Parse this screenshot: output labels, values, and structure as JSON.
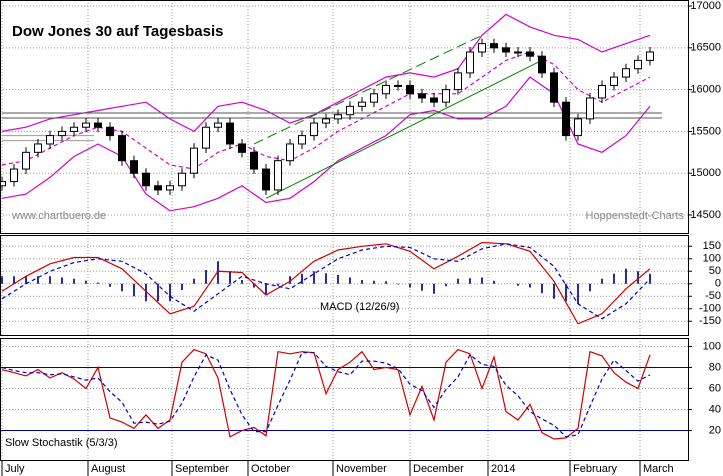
{
  "chart_data": [
    {
      "type": "candlestick",
      "title": "Dow Jones 30 auf Tagesbasis",
      "x": [
        0,
        3,
        6,
        9,
        12,
        15,
        18,
        21,
        24,
        27,
        30,
        33,
        36,
        39,
        42,
        45,
        48,
        51,
        54,
        57,
        60,
        63,
        66,
        69,
        72,
        75,
        78,
        81,
        84,
        87,
        90,
        93,
        96,
        99,
        102,
        105,
        108,
        111,
        114,
        117,
        120,
        123,
        126,
        129,
        132,
        135,
        138,
        141,
        144,
        147,
        150,
        153,
        156,
        159,
        162
      ],
      "open": [
        14850,
        14900,
        15050,
        15250,
        15350,
        15450,
        15500,
        15550,
        15600,
        15550,
        15450,
        15150,
        15000,
        14850,
        14800,
        14850,
        15000,
        15300,
        15550,
        15600,
        15350,
        15250,
        15050,
        14800,
        15150,
        15350,
        15450,
        15600,
        15650,
        15700,
        15800,
        15850,
        15950,
        16050,
        16050,
        15950,
        15900,
        15850,
        16000,
        16200,
        16450,
        16550,
        16500,
        16450,
        16450,
        16400,
        16200,
        15850,
        15450,
        15650,
        15900,
        16050,
        16150,
        16250,
        16350
      ],
      "high": [
        14960,
        15110,
        15310,
        15410,
        15510,
        15560,
        15610,
        15660,
        15660,
        15610,
        15510,
        15210,
        15060,
        14910,
        14910,
        15060,
        15360,
        15610,
        15660,
        15660,
        15410,
        15310,
        15110,
        15210,
        15410,
        15510,
        15660,
        15710,
        15760,
        15860,
        15910,
        16010,
        16110,
        16110,
        16110,
        16010,
        15960,
        16060,
        16260,
        16510,
        16610,
        16610,
        16560,
        16510,
        16510,
        16460,
        16260,
        15910,
        15710,
        15960,
        16110,
        16210,
        16310,
        16410,
        16510
      ],
      "low": [
        14790,
        14840,
        14990,
        15190,
        15290,
        15390,
        15440,
        15490,
        15490,
        15390,
        15090,
        14940,
        14790,
        14740,
        14740,
        14790,
        14940,
        15240,
        15490,
        15290,
        15190,
        14990,
        14740,
        14740,
        15090,
        15290,
        15390,
        15540,
        15590,
        15640,
        15740,
        15790,
        15890,
        15990,
        15890,
        15840,
        15790,
        15790,
        15940,
        16140,
        16390,
        16440,
        16390,
        16390,
        16340,
        16140,
        15790,
        15390,
        15390,
        15590,
        15840,
        15990,
        16090,
        16190,
        16290
      ],
      "close": [
        14900,
        15050,
        15250,
        15350,
        15450,
        15500,
        15550,
        15600,
        15550,
        15450,
        15150,
        15000,
        14850,
        14800,
        14850,
        15000,
        15300,
        15550,
        15600,
        15350,
        15250,
        15050,
        14800,
        15150,
        15350,
        15450,
        15600,
        15650,
        15700,
        15800,
        15850,
        15950,
        16050,
        16050,
        15950,
        15900,
        15850,
        16000,
        16200,
        16450,
        16550,
        16500,
        16450,
        16450,
        16400,
        16200,
        15850,
        15450,
        15650,
        15900,
        16050,
        16150,
        16250,
        16350,
        16450
      ],
      "up_color": "#ffffff",
      "down_color": "#000000",
      "bands": {
        "color": "#d400d4",
        "x": [
          0,
          6,
          12,
          18,
          24,
          30,
          36,
          42,
          48,
          54,
          60,
          66,
          72,
          78,
          84,
          90,
          96,
          102,
          108,
          114,
          120,
          126,
          132,
          138,
          144,
          150,
          156,
          162
        ],
        "upper": [
          15500,
          15550,
          15650,
          15700,
          15750,
          15800,
          15850,
          15650,
          15500,
          15800,
          15850,
          15750,
          15600,
          15700,
          15850,
          16000,
          16150,
          16200,
          16150,
          16250,
          16650,
          16900,
          16750,
          16650,
          16600,
          16450,
          16550,
          16650
        ],
        "middle": [
          15100,
          15150,
          15300,
          15450,
          15550,
          15500,
          15300,
          15100,
          15050,
          15250,
          15350,
          15200,
          15150,
          15300,
          15500,
          15650,
          15800,
          15950,
          15950,
          15950,
          16150,
          16350,
          16450,
          16300,
          16000,
          15850,
          16000,
          16150
        ],
        "lower": [
          14700,
          14750,
          14950,
          15200,
          15350,
          15200,
          14750,
          14550,
          14600,
          14700,
          14850,
          14650,
          14700,
          14900,
          15150,
          15300,
          15450,
          15700,
          15750,
          15650,
          15650,
          15800,
          16150,
          15950,
          15350,
          15250,
          15450,
          15800
        ]
      },
      "trendlines": [
        {
          "x": [
            63,
            120
          ],
          "y": [
            15350,
            16650
          ],
          "color": "#008000",
          "dashed": true
        },
        {
          "x": [
            66,
            135
          ],
          "y": [
            14700,
            16350
          ],
          "color": "#008000",
          "dashed": false
        }
      ],
      "levels": [
        {
          "x": [
            0,
            165
          ],
          "y": 15720,
          "color": "#555555"
        },
        {
          "x": [
            0,
            165
          ],
          "y": 15660,
          "color": "#555555"
        },
        {
          "x": [
            0,
            23
          ],
          "y": 15450,
          "color": "#999999"
        },
        {
          "x": [
            0,
            23
          ],
          "y": 15390,
          "color": "#999999"
        }
      ],
      "annotations": [
        "www.chartbuero.de",
        "Hoppenstedt-Charts"
      ],
      "xlim": [
        -0.5,
        171.5
      ],
      "ylim": [
        14285,
        17072
      ],
      "yticks": [
        14500,
        15000,
        15500,
        16000,
        16500,
        17000
      ],
      "grid": true
    },
    {
      "type": "macd",
      "label": "MACD (12/26/9)",
      "x": [
        0,
        6,
        12,
        18,
        24,
        30,
        36,
        42,
        48,
        54,
        60,
        66,
        72,
        78,
        84,
        90,
        96,
        102,
        108,
        114,
        120,
        126,
        132,
        138,
        144,
        150,
        156,
        162
      ],
      "series": [
        {
          "color": "#d00000",
          "dashed": false,
          "values": [
            -30,
            30,
            80,
            105,
            105,
            60,
            -30,
            -120,
            -90,
            50,
            45,
            -45,
            10,
            90,
            135,
            150,
            160,
            130,
            60,
            110,
            165,
            160,
            130,
            10,
            -160,
            -120,
            -20,
            60
          ]
        },
        {
          "color": "#0000c0",
          "dashed": true,
          "values": [
            -60,
            0,
            50,
            85,
            100,
            90,
            40,
            -50,
            -110,
            -40,
            30,
            0,
            -20,
            40,
            100,
            135,
            150,
            145,
            100,
            90,
            140,
            160,
            145,
            70,
            -80,
            -140,
            -80,
            20
          ]
        }
      ],
      "histogram": {
        "color": "#2a2a9a",
        "values": [
          30,
          30,
          30,
          30,
          30,
          25,
          20,
          12,
          5,
          -12,
          -30,
          -50,
          -70,
          -70,
          -70,
          -25,
          20,
          55,
          90,
          50,
          15,
          -15,
          -45,
          -8,
          30,
          40,
          50,
          42,
          35,
          25,
          15,
          12,
          10,
          -3,
          -15,
          -28,
          -40,
          -10,
          20,
          22,
          25,
          12,
          0,
          -8,
          -15,
          -38,
          -60,
          -70,
          -80,
          -30,
          20,
          40,
          60,
          50,
          40
        ]
      },
      "xlim": [
        -0.5,
        171.5
      ],
      "ylim": [
        -205,
        195
      ],
      "yticks": [
        150,
        100,
        50,
        0,
        -50,
        -100,
        -150
      ],
      "grid": true
    },
    {
      "type": "line",
      "label": "Slow Stochastik (5/3/3)",
      "series": [
        {
          "color": "#d00000",
          "dashed": false,
          "values": [
            78,
            75,
            72,
            78,
            70,
            75,
            69,
            60,
            80,
            32,
            28,
            22,
            35,
            22,
            30,
            85,
            97,
            93,
            70,
            14,
            20,
            23,
            15,
            95,
            93,
            95,
            94,
            55,
            78,
            85,
            95,
            78,
            80,
            78,
            35,
            62,
            30,
            85,
            97,
            93,
            60,
            90,
            38,
            30,
            45,
            18,
            12,
            13,
            22,
            95,
            91,
            75,
            66,
            60,
            92
          ]
        },
        {
          "color": "#0000c0",
          "dashed": true,
          "values": [
            80,
            77,
            75,
            75,
            73,
            74,
            71,
            68,
            70,
            57,
            47,
            27,
            28,
            26,
            29,
            46,
            71,
            92,
            87,
            59,
            35,
            19,
            19,
            44,
            68,
            94,
            94,
            81,
            76,
            73,
            86,
            86,
            84,
            79,
            64,
            58,
            42,
            59,
            71,
            92,
            83,
            81,
            63,
            53,
            38,
            31,
            25,
            14,
            16,
            43,
            69,
            87,
            77,
            67,
            73
          ]
        }
      ],
      "levels": [
        20,
        80
      ],
      "level_color": "#0000a0",
      "xlim": [
        -0.5,
        171.5
      ],
      "ylim": [
        -8,
        108
      ],
      "yticks": [
        20,
        40,
        60,
        80,
        100
      ],
      "xticks": [
        {
          "value": 0,
          "label": "July"
        },
        {
          "value": 21.5,
          "label": "August"
        },
        {
          "value": 42.5,
          "label": "September"
        },
        {
          "value": 61.5,
          "label": "October"
        },
        {
          "value": 82.75,
          "label": "November"
        },
        {
          "value": 102,
          "label": "December"
        },
        {
          "value": 121.5,
          "label": "2014"
        },
        {
          "value": 142,
          "label": "February"
        },
        {
          "value": 159.5,
          "label": "March"
        }
      ],
      "grid": true
    }
  ]
}
